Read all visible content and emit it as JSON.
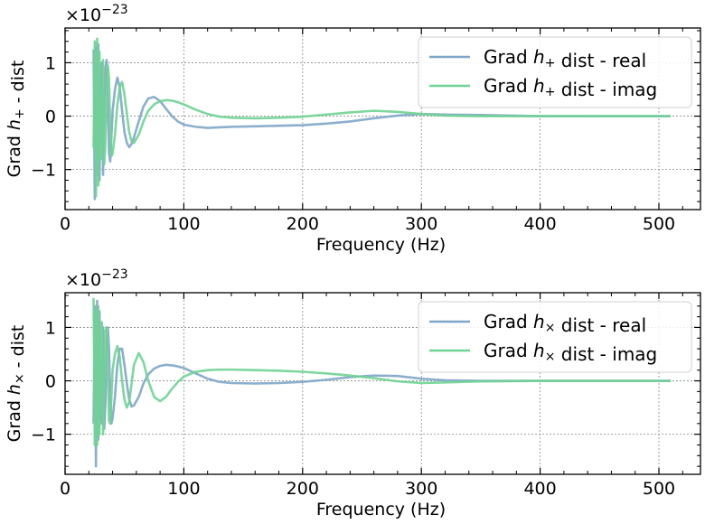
{
  "chart_data": [
    {
      "type": "line",
      "xlabel": "Frequency (Hz)",
      "ylabel": "Grad h₊ - dist",
      "offset_label": "×10⁻²³",
      "xlim": [
        0,
        535
      ],
      "ylim": [
        -1.75,
        1.65
      ],
      "xticks": [
        0,
        100,
        200,
        300,
        400,
        500
      ],
      "yticks": [
        -1,
        0,
        1
      ],
      "grid": true,
      "legend_position": "top-right",
      "series": [
        {
          "name": "Grad h₊ dist - real",
          "color": "#7fa6c9",
          "x": [
            24,
            25,
            26,
            27,
            28,
            29,
            30,
            31,
            32,
            33,
            34,
            35,
            36,
            37,
            38,
            39,
            40,
            42,
            44,
            46,
            48,
            50,
            52,
            54,
            56,
            58,
            62,
            66,
            70,
            75,
            80,
            85,
            90,
            95,
            100,
            110,
            120,
            130,
            140,
            160,
            180,
            200,
            220,
            240,
            260,
            280,
            300,
            320,
            350,
            400,
            450,
            510
          ],
          "y": [
            1.25,
            -1.55,
            1.3,
            -1.1,
            1.35,
            -1.2,
            0.5,
            1.0,
            -1.1,
            0.2,
            0.9,
            1.05,
            0.3,
            -0.7,
            -0.85,
            -0.4,
            0.1,
            0.5,
            0.72,
            0.55,
            0.1,
            -0.3,
            -0.5,
            -0.58,
            -0.52,
            -0.4,
            -0.1,
            0.18,
            0.33,
            0.36,
            0.28,
            0.14,
            0.0,
            -0.1,
            -0.16,
            -0.2,
            -0.22,
            -0.21,
            -0.2,
            -0.19,
            -0.18,
            -0.17,
            -0.14,
            -0.1,
            -0.04,
            0.01,
            0.04,
            0.03,
            0.02,
            0.0,
            0.0,
            0.0
          ]
        },
        {
          "name": "Grad h₊ dist - imag",
          "color": "#6fd394",
          "x": [
            24,
            25,
            26,
            27,
            28,
            29,
            30,
            31,
            32,
            33,
            34,
            35,
            36,
            37,
            38,
            39,
            40,
            42,
            44,
            46,
            48,
            50,
            52,
            54,
            56,
            58,
            62,
            66,
            70,
            75,
            80,
            85,
            90,
            95,
            100,
            110,
            120,
            130,
            140,
            160,
            180,
            200,
            220,
            240,
            260,
            280,
            300,
            320,
            350,
            400,
            450,
            510
          ],
          "y": [
            -0.6,
            1.4,
            -1.5,
            1.45,
            -1.3,
            1.2,
            -0.8,
            -0.6,
            1.05,
            -0.9,
            -0.5,
            0.6,
            0.95,
            0.7,
            -0.2,
            -0.75,
            -0.7,
            -0.35,
            0.2,
            0.55,
            0.64,
            0.4,
            0.05,
            -0.3,
            -0.47,
            -0.5,
            -0.35,
            -0.1,
            0.1,
            0.22,
            0.28,
            0.3,
            0.29,
            0.26,
            0.22,
            0.12,
            0.04,
            -0.01,
            -0.03,
            -0.04,
            -0.03,
            -0.01,
            0.03,
            0.07,
            0.1,
            0.08,
            0.04,
            0.01,
            0.0,
            0.0,
            0.0,
            0.0
          ]
        }
      ]
    },
    {
      "type": "line",
      "xlabel": "Frequency (Hz)",
      "ylabel": "Grad hₓ - dist",
      "offset_label": "×10⁻²³",
      "xlim": [
        0,
        535
      ],
      "ylim": [
        -1.75,
        1.65
      ],
      "xticks": [
        0,
        100,
        200,
        300,
        400,
        500
      ],
      "yticks": [
        -1,
        0,
        1
      ],
      "grid": true,
      "legend_position": "top-right",
      "series": [
        {
          "name": "Grad hₓ dist - real",
          "color": "#7fa6c9",
          "x": [
            24,
            25,
            26,
            27,
            28,
            29,
            30,
            31,
            32,
            33,
            34,
            35,
            36,
            37,
            38,
            39,
            40,
            42,
            44,
            46,
            48,
            50,
            52,
            54,
            56,
            58,
            62,
            66,
            70,
            75,
            80,
            85,
            90,
            95,
            100,
            110,
            120,
            130,
            140,
            160,
            180,
            200,
            220,
            240,
            260,
            280,
            300,
            320,
            350,
            400,
            450,
            510
          ],
          "y": [
            -0.8,
            1.4,
            -1.6,
            1.5,
            -1.1,
            1.3,
            -0.7,
            -0.8,
            1.0,
            -0.9,
            -0.4,
            0.7,
            1.0,
            0.6,
            -0.3,
            -0.8,
            -0.7,
            -0.3,
            0.3,
            0.6,
            0.6,
            0.3,
            -0.05,
            -0.35,
            -0.48,
            -0.46,
            -0.3,
            -0.05,
            0.12,
            0.23,
            0.28,
            0.3,
            0.29,
            0.27,
            0.24,
            0.14,
            0.04,
            -0.02,
            -0.04,
            -0.05,
            -0.04,
            -0.02,
            0.02,
            0.07,
            0.1,
            0.09,
            0.04,
            0.01,
            0.0,
            0.0,
            0.0,
            0.0
          ]
        },
        {
          "name": "Grad hₓ dist - imag",
          "color": "#6fd394",
          "x": [
            24,
            25,
            26,
            27,
            28,
            29,
            30,
            31,
            32,
            33,
            34,
            35,
            36,
            37,
            38,
            39,
            40,
            42,
            44,
            46,
            48,
            50,
            52,
            54,
            56,
            58,
            62,
            66,
            70,
            75,
            80,
            85,
            90,
            95,
            100,
            110,
            120,
            130,
            140,
            160,
            180,
            200,
            220,
            240,
            260,
            280,
            300,
            320,
            350,
            400,
            450,
            510
          ],
          "y": [
            1.55,
            -1.2,
            1.3,
            -1.2,
            1.4,
            -1.0,
            0.6,
            1.1,
            -1.0,
            0.1,
            0.95,
            1.0,
            0.2,
            -0.75,
            -0.8,
            -0.3,
            0.2,
            0.5,
            0.65,
            0.45,
            0.0,
            -0.35,
            -0.5,
            -0.4,
            -0.05,
            0.3,
            0.52,
            0.35,
            0.0,
            -0.3,
            -0.38,
            -0.3,
            -0.15,
            -0.02,
            0.08,
            0.17,
            0.2,
            0.21,
            0.21,
            0.2,
            0.19,
            0.17,
            0.14,
            0.1,
            0.05,
            -0.01,
            -0.04,
            -0.03,
            -0.01,
            0.0,
            0.0,
            0.0
          ]
        }
      ]
    }
  ]
}
